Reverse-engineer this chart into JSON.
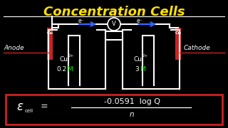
{
  "title": "Concentration Cells",
  "title_color": "#FFE000",
  "bg_color": "#000000",
  "anode_label": "Anode",
  "cathode_label": "Cathode",
  "white": "#FFFFFF",
  "red": "#CC2222",
  "green": "#00EE00",
  "blue": "#3366FF",
  "yellow": "#FFE000",
  "title_fontsize": 13,
  "wire_lw": 1.5
}
